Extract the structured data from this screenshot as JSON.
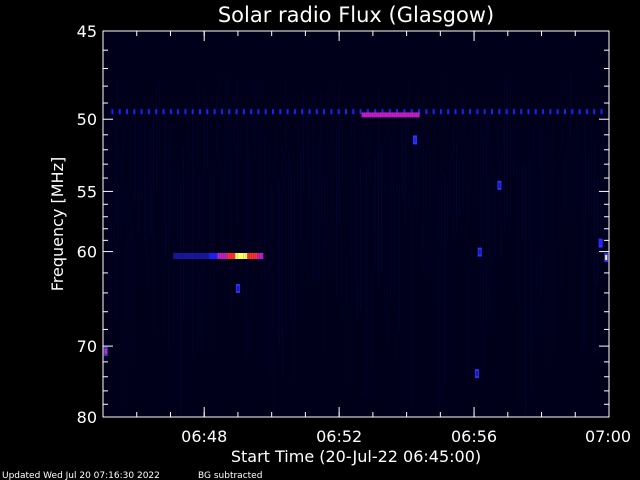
{
  "chart_data": {
    "type": "heatmap",
    "title": "Solar radio Flux (Glasgow)",
    "xlabel": "Start Time (20-Jul-22 06:45:00)",
    "ylabel": "Frequency [MHz]",
    "x_unit": "time (UT)",
    "xlim": [
      "06:45:00",
      "07:00:00"
    ],
    "ylim": [
      45,
      80
    ],
    "y_scale": "reciprocal",
    "y_inverted": false,
    "x_ticks": [
      "06:48",
      "06:52",
      "06:56",
      "07:00"
    ],
    "y_ticks": [
      45,
      50,
      55,
      60,
      70,
      80
    ],
    "grid": false,
    "colormap": {
      "low": "#000000",
      "mid": "#2020ff",
      "high": "#ff3030",
      "peak": "#ffff60"
    },
    "features": [
      {
        "type": "dashed-band",
        "freq": 49.5,
        "start": "06:45:15",
        "end": "06:59:55",
        "intensity": 0.55
      },
      {
        "type": "band",
        "freq": 49.7,
        "start": "06:52:40",
        "end": "06:54:20",
        "intensity": 0.75
      },
      {
        "type": "burst",
        "freq": 60.4,
        "start": "06:47:05",
        "end": "06:49:45",
        "intensity": 0.7,
        "peak_time": "06:49:05",
        "peak_intensity": 1.0
      },
      {
        "type": "spot",
        "freq": 60.5,
        "time": "06:59:55",
        "intensity": 0.95
      },
      {
        "type": "spot",
        "freq": 59.2,
        "time": "06:59:45",
        "intensity": 0.5
      },
      {
        "type": "spot",
        "freq": 70.6,
        "time": "06:45:05",
        "intensity": 0.85
      },
      {
        "type": "spot",
        "freq": 51.3,
        "time": "06:54:15",
        "intensity": 0.55
      },
      {
        "type": "spot",
        "freq": 54.5,
        "time": "06:56:45",
        "intensity": 0.4
      },
      {
        "type": "spot",
        "freq": 60.0,
        "time": "06:56:10",
        "intensity": 0.4
      },
      {
        "type": "spot",
        "freq": 73.5,
        "time": "06:56:05",
        "intensity": 0.45
      },
      {
        "type": "spot",
        "freq": 63.5,
        "time": "06:49:00",
        "intensity": 0.35
      }
    ]
  },
  "footer": {
    "updated": "Updated Wed Jul 20 07:16:30 2022",
    "note": "BG subtracted"
  }
}
